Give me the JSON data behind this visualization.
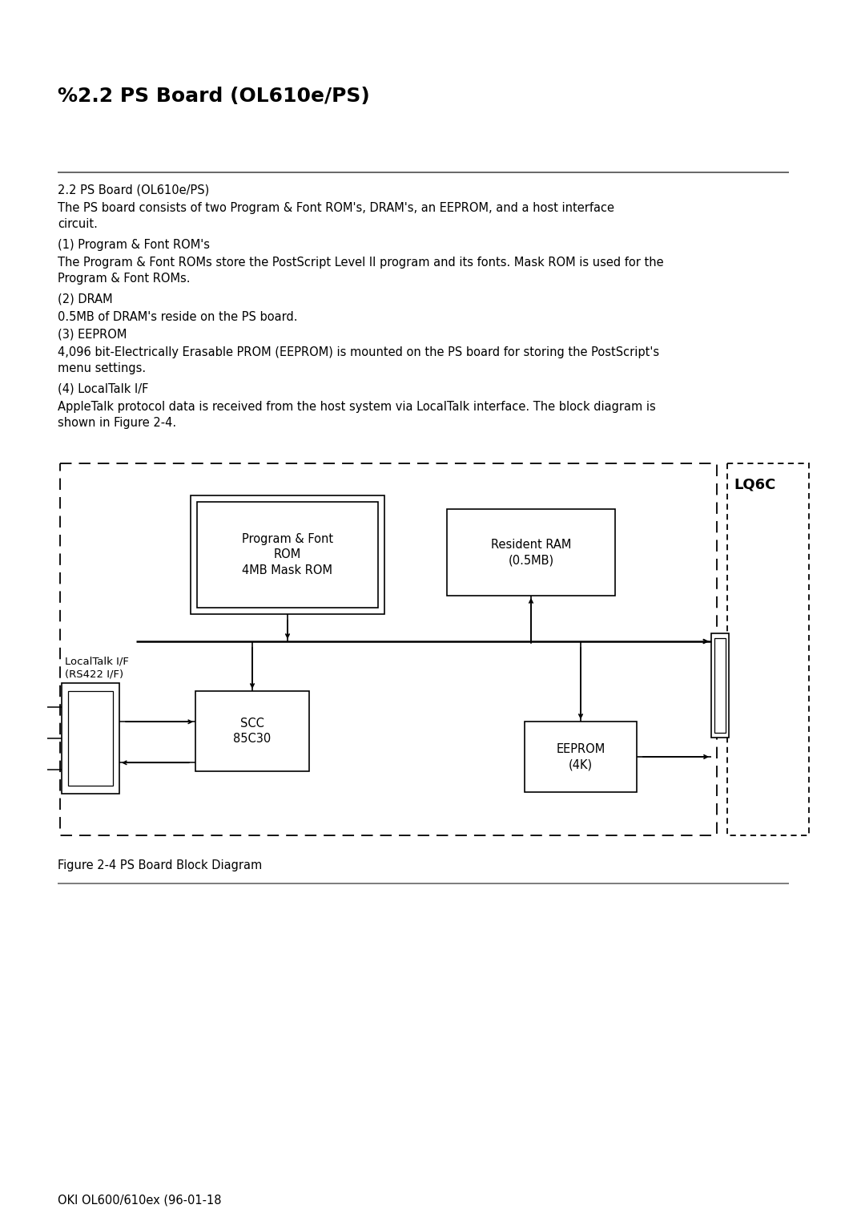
{
  "title": "%2.2 PS Board (OL610e/PS)",
  "body_text": [
    "2.2 PS Board (OL610e/PS)",
    "The PS board consists of two Program & Font ROM's, DRAM's, an EEPROM, and a host interface\ncircuit.",
    "(1) Program & Font ROM's",
    "The Program & Font ROMs store the PostScript Level II program and its fonts. Mask ROM is used for the\nProgram & Font ROMs.",
    "(2) DRAM",
    "0.5MB of DRAM's reside on the PS board.",
    "(3) EEPROM",
    "4,096 bit-Electrically Erasable PROM (EEPROM) is mounted on the PS board for storing the PostScript's\nmenu settings.",
    "(4) LocalTalk I/F",
    "AppleTalk protocol data is received from the host system via LocalTalk interface. The block diagram is\nshown in Figure 2-4."
  ],
  "figure_caption": "Figure 2-4 PS Board Block Diagram",
  "footer_text": "OKI OL600/610ex (96-01-18",
  "bg_color": "#ffffff",
  "text_color": "#000000",
  "lq6c_label": "LQ6C",
  "rom_label": "Program & Font\nROM\n4MB Mask ROM",
  "ram_label": "Resident RAM\n(0.5MB)",
  "eeprom_label": "EEPROM\n(4K)",
  "scc_label": "SCC\n85C30",
  "localtalk_label": "LocalTalk I/F\n(RS422 I/F)"
}
